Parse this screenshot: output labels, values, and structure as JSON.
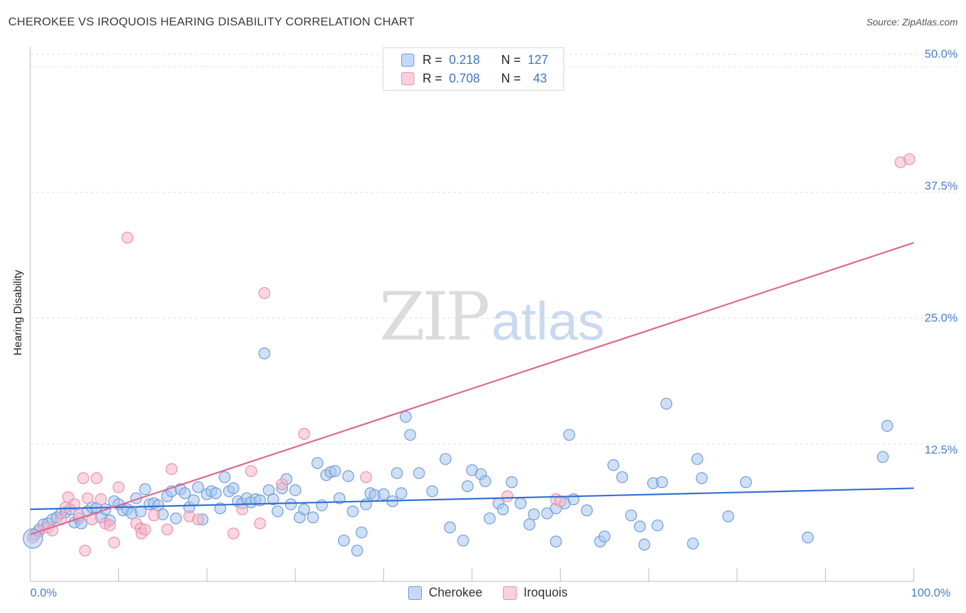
{
  "title": "CHEROKEE VS IROQUOIS HEARING DISABILITY CORRELATION CHART",
  "source": "Source: ZipAtlas.com",
  "watermark": {
    "zip": "ZIP",
    "atlas": "atlas"
  },
  "legend": {
    "r_label": "R =",
    "n_label": "N =",
    "cherokee": {
      "r": "0.218",
      "n": "127"
    },
    "iroquois": {
      "r": "0.708",
      "n": "43"
    }
  },
  "colors": {
    "cherokee_fill": "#a8c6ef",
    "cherokee_stroke": "#6f9bd8",
    "cherokee_line": "#2f6fd0",
    "iroquois_fill": "#f4b6c9",
    "iroquois_stroke": "#ec8fab",
    "iroquois_line": "#e0648f",
    "tick_text": "#4a7fc9",
    "grid": "#dddddd"
  },
  "chart_data": {
    "type": "scatter",
    "title": "CHEROKEE VS IROQUOIS HEARING DISABILITY CORRELATION CHART",
    "xlabel": "",
    "ylabel": "Hearing Disability",
    "xlim": [
      0,
      100
    ],
    "ylim": [
      0,
      51
    ],
    "x_tick_labels": [
      "0.0%",
      "100.0%"
    ],
    "y_ticks": [
      12.5,
      25.0,
      37.5,
      50.0
    ],
    "y_tick_labels": [
      "12.5%",
      "25.0%",
      "37.5%",
      "50.0%"
    ],
    "grid": true,
    "series": [
      {
        "name": "Cherokee",
        "trend": {
          "x": [
            0,
            100
          ],
          "y": [
            6.0,
            8.1
          ]
        },
        "points": [
          [
            0.5,
            3.5
          ],
          [
            1.0,
            4.0
          ],
          [
            1.5,
            4.5
          ],
          [
            2.0,
            4.6
          ],
          [
            2.5,
            5.0
          ],
          [
            3.0,
            5.2
          ],
          [
            3.5,
            5.6
          ],
          [
            4.0,
            5.7
          ],
          [
            4.5,
            6.0
          ],
          [
            5.0,
            4.7
          ],
          [
            5.5,
            5.1
          ],
          [
            5.8,
            4.6
          ],
          [
            6.5,
            5.8
          ],
          [
            7.0,
            6.2
          ],
          [
            7.5,
            6.1
          ],
          [
            8.0,
            5.2
          ],
          [
            8.5,
            6.0
          ],
          [
            9.0,
            4.9
          ],
          [
            9.5,
            6.8
          ],
          [
            10.0,
            6.5
          ],
          [
            10.5,
            5.9
          ],
          [
            11.0,
            6.0
          ],
          [
            11.5,
            5.6
          ],
          [
            12.0,
            7.1
          ],
          [
            12.5,
            5.8
          ],
          [
            13.0,
            8.0
          ],
          [
            13.5,
            6.5
          ],
          [
            14.0,
            6.6
          ],
          [
            14.5,
            6.4
          ],
          [
            15.0,
            5.5
          ],
          [
            15.5,
            7.3
          ],
          [
            16.0,
            7.8
          ],
          [
            16.5,
            5.1
          ],
          [
            17.0,
            8.0
          ],
          [
            17.5,
            7.6
          ],
          [
            18.0,
            6.2
          ],
          [
            18.5,
            6.9
          ],
          [
            19.0,
            8.2
          ],
          [
            19.5,
            5.0
          ],
          [
            20.0,
            7.5
          ],
          [
            20.5,
            7.8
          ],
          [
            21.0,
            7.6
          ],
          [
            21.5,
            6.1
          ],
          [
            22.0,
            9.2
          ],
          [
            22.5,
            7.8
          ],
          [
            23.0,
            8.1
          ],
          [
            23.5,
            6.8
          ],
          [
            24.0,
            6.6
          ],
          [
            24.5,
            7.1
          ],
          [
            25.0,
            6.7
          ],
          [
            25.5,
            7.0
          ],
          [
            26.0,
            6.9
          ],
          [
            26.5,
            21.5
          ],
          [
            27.0,
            7.9
          ],
          [
            27.5,
            7.0
          ],
          [
            28.0,
            5.8
          ],
          [
            28.5,
            8.1
          ],
          [
            29.0,
            9.0
          ],
          [
            29.5,
            6.5
          ],
          [
            30.0,
            7.9
          ],
          [
            30.5,
            5.2
          ],
          [
            31.0,
            6.0
          ],
          [
            32.0,
            5.2
          ],
          [
            32.5,
            10.6
          ],
          [
            33.0,
            6.4
          ],
          [
            33.5,
            9.4
          ],
          [
            34.0,
            9.7
          ],
          [
            34.5,
            9.8
          ],
          [
            35.0,
            7.1
          ],
          [
            35.5,
            2.9
          ],
          [
            36.0,
            9.3
          ],
          [
            36.5,
            5.8
          ],
          [
            37.0,
            1.9
          ],
          [
            37.5,
            3.7
          ],
          [
            38.0,
            6.5
          ],
          [
            38.5,
            7.6
          ],
          [
            39.0,
            7.4
          ],
          [
            40.0,
            7.5
          ],
          [
            41.0,
            6.8
          ],
          [
            41.5,
            9.6
          ],
          [
            42.0,
            7.6
          ],
          [
            42.5,
            15.2
          ],
          [
            43.0,
            13.4
          ],
          [
            44.0,
            9.6
          ],
          [
            45.5,
            7.8
          ],
          [
            47.0,
            11.0
          ],
          [
            47.5,
            4.2
          ],
          [
            49.0,
            2.9
          ],
          [
            49.5,
            8.3
          ],
          [
            50.0,
            9.9
          ],
          [
            51.0,
            9.5
          ],
          [
            51.5,
            8.8
          ],
          [
            52.0,
            5.1
          ],
          [
            53.0,
            6.6
          ],
          [
            53.5,
            6.0
          ],
          [
            54.5,
            8.7
          ],
          [
            55.5,
            6.6
          ],
          [
            56.5,
            4.5
          ],
          [
            57.0,
            5.5
          ],
          [
            58.5,
            5.6
          ],
          [
            59.5,
            6.1
          ],
          [
            59.5,
            2.8
          ],
          [
            60.5,
            6.6
          ],
          [
            61.0,
            13.4
          ],
          [
            61.5,
            7.0
          ],
          [
            63.0,
            5.9
          ],
          [
            64.5,
            2.8
          ],
          [
            65.0,
            3.3
          ],
          [
            66.0,
            10.4
          ],
          [
            67.0,
            9.2
          ],
          [
            68.0,
            5.4
          ],
          [
            69.0,
            4.3
          ],
          [
            69.5,
            2.5
          ],
          [
            70.5,
            8.6
          ],
          [
            71.0,
            4.4
          ],
          [
            71.5,
            8.7
          ],
          [
            72.0,
            16.5
          ],
          [
            75.0,
            2.6
          ],
          [
            75.5,
            11.0
          ],
          [
            76.0,
            9.1
          ],
          [
            79.0,
            5.3
          ],
          [
            81.0,
            8.7
          ],
          [
            88.0,
            3.2
          ],
          [
            96.5,
            11.2
          ],
          [
            97.0,
            14.3
          ]
        ]
      },
      {
        "name": "Iroquois",
        "trend": {
          "x": [
            0,
            100
          ],
          "y": [
            3.5,
            32.5
          ]
        },
        "points": [
          [
            0.3,
            3.2
          ],
          [
            1.0,
            3.8
          ],
          [
            2.0,
            4.2
          ],
          [
            2.5,
            3.9
          ],
          [
            3.5,
            5.0
          ],
          [
            4.0,
            6.2
          ],
          [
            4.3,
            7.2
          ],
          [
            5.0,
            6.5
          ],
          [
            5.5,
            5.4
          ],
          [
            6.0,
            9.1
          ],
          [
            6.2,
            1.9
          ],
          [
            6.5,
            7.1
          ],
          [
            7.0,
            5.0
          ],
          [
            7.5,
            9.1
          ],
          [
            8.0,
            7.0
          ],
          [
            8.5,
            4.6
          ],
          [
            9.0,
            4.4
          ],
          [
            9.5,
            2.7
          ],
          [
            10.0,
            8.2
          ],
          [
            11.0,
            33.0
          ],
          [
            12.0,
            4.6
          ],
          [
            12.5,
            4.1
          ],
          [
            12.6,
            3.6
          ],
          [
            13.0,
            4.0
          ],
          [
            14.0,
            5.4
          ],
          [
            15.5,
            4.0
          ],
          [
            16.0,
            10.0
          ],
          [
            18.0,
            5.3
          ],
          [
            19.0,
            5.0
          ],
          [
            23.0,
            3.6
          ],
          [
            24.0,
            6.0
          ],
          [
            25.0,
            9.8
          ],
          [
            26.0,
            4.6
          ],
          [
            26.5,
            27.5
          ],
          [
            28.5,
            8.5
          ],
          [
            31.0,
            13.5
          ],
          [
            38.0,
            9.2
          ],
          [
            54.0,
            7.3
          ],
          [
            59.5,
            7.0
          ],
          [
            60.0,
            6.8
          ],
          [
            98.5,
            40.5
          ],
          [
            99.5,
            40.8
          ]
        ]
      }
    ]
  }
}
